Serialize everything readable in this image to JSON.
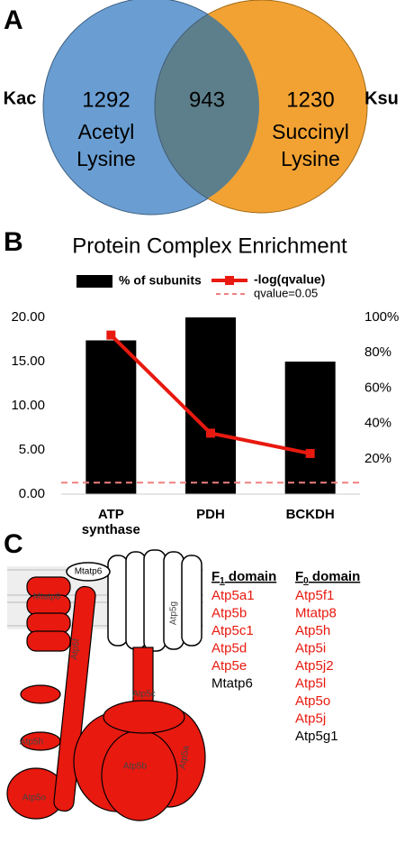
{
  "chart_data": [
    {
      "type": "venn",
      "panel_label": "A",
      "sets": [
        {
          "name": "Kac",
          "label_lines": [
            "Acetyl",
            "Lysine"
          ],
          "value": 1292,
          "color": "#6a9ed2"
        },
        {
          "name": "Ksu",
          "label_lines": [
            "Succinyl",
            "Lysine"
          ],
          "value": 1230,
          "color": "#f2a233"
        }
      ],
      "overlap": {
        "value": 943,
        "color": "#5d7f8c"
      }
    },
    {
      "type": "bar_line",
      "panel_label": "B",
      "title": "Protein Complex Enrichment",
      "categories": [
        "ATP synthase",
        "PDH",
        "BCKDH"
      ],
      "series": [
        {
          "name": "% of subunits",
          "type": "bar",
          "axis": "y2",
          "color": "#000000",
          "values": [
            87,
            100,
            75
          ]
        },
        {
          "name": "-log(qvalue)",
          "type": "line",
          "color": "#e8190f",
          "values": [
            18.0,
            6.9,
            4.6
          ]
        }
      ],
      "reference_line": {
        "name": "qvalue=0.05",
        "value": 1.3,
        "color": "#f08080"
      },
      "ylim": [
        0,
        20
      ],
      "yticks": [
        {
          "value": 0,
          "label": "0.00"
        },
        {
          "value": 5,
          "label": "5.00"
        },
        {
          "value": 10,
          "label": "10.00"
        },
        {
          "value": 15,
          "label": "15.00"
        },
        {
          "value": 20,
          "label": "20.00"
        }
      ],
      "y2lim": [
        0,
        100
      ],
      "y2ticks": [
        {
          "value": 20,
          "label": "20%"
        },
        {
          "value": 40,
          "label": "40%"
        },
        {
          "value": 60,
          "label": "60%"
        },
        {
          "value": 80,
          "label": "80%"
        },
        {
          "value": 100,
          "label": "100%"
        }
      ]
    }
  ],
  "diagram": {
    "panel_label": "C",
    "labels": [
      "Mtatp6",
      "Mtatp8",
      "Atp5g",
      "Atp5f",
      "Atp5h",
      "Atp5c",
      "Atp5b",
      "Atp5a",
      "Atp5o"
    ],
    "lists": [
      {
        "header": {
          "letter": "F",
          "sub": "1",
          "rest": " domain"
        },
        "items": [
          {
            "name": "Atp5a1",
            "color": "#e8190f"
          },
          {
            "name": "Atp5b",
            "color": "#e8190f"
          },
          {
            "name": "Atp5c1",
            "color": "#e8190f"
          },
          {
            "name": "Atp5d",
            "color": "#e8190f"
          },
          {
            "name": "Atp5e",
            "color": "#e8190f"
          },
          {
            "name": "Mtatp6",
            "color": "#000000"
          }
        ]
      },
      {
        "header": {
          "letter": "F",
          "sub": "0",
          "rest": " domain"
        },
        "items": [
          {
            "name": "Atp5f1",
            "color": "#e8190f"
          },
          {
            "name": "Mtatp8",
            "color": "#e8190f"
          },
          {
            "name": "Atp5h",
            "color": "#e8190f"
          },
          {
            "name": "Atp5i",
            "color": "#e8190f"
          },
          {
            "name": "Atp5j2",
            "color": "#e8190f"
          },
          {
            "name": "Atp5l",
            "color": "#e8190f"
          },
          {
            "name": "Atp5o",
            "color": "#e8190f"
          },
          {
            "name": "Atp5j",
            "color": "#e8190f"
          },
          {
            "name": "Atp5g1",
            "color": "#000000"
          }
        ]
      }
    ]
  }
}
